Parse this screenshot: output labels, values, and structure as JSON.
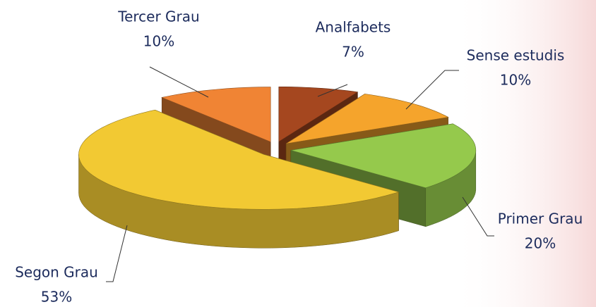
{
  "chart_data": {
    "type": "pie",
    "categories": [
      "Analfabets",
      "Sense estudis",
      "Primer Grau",
      "Segon Grau",
      "Tercer Grau"
    ],
    "values": [
      7,
      10,
      20,
      53,
      10
    ],
    "value_labels": [
      "7%",
      "10%",
      "20%",
      "53%",
      "10%"
    ],
    "colors": [
      "#a5471f",
      "#f5a42c",
      "#95c94c",
      "#f2c933",
      "#f08434"
    ]
  }
}
